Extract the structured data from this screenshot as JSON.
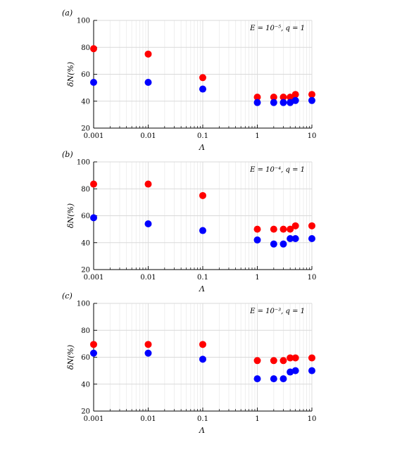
{
  "chart_data": [
    {
      "type": "scatter",
      "panel_label": "(a)",
      "annotation": "E = 10⁻⁵, q = 1",
      "xlabel": "Λ",
      "ylabel": "δN(%)",
      "x_scale": "log",
      "xlim": [
        0.001,
        10
      ],
      "ylim": [
        20,
        100
      ],
      "x_ticks": [
        0.001,
        0.01,
        0.1,
        1,
        10
      ],
      "x_tick_labels": [
        "0.001",
        "0.01",
        "0.1",
        "1",
        "10"
      ],
      "y_ticks": [
        20,
        40,
        60,
        80,
        100
      ],
      "y_tick_labels": [
        "20",
        "40",
        "60",
        "80",
        "100"
      ],
      "grid": true,
      "series": [
        {
          "color": "#ff0000",
          "x": [
            0.001,
            0.01,
            0.1,
            1,
            2,
            3,
            4,
            5,
            10
          ],
          "y": [
            79,
            75,
            57.5,
            43,
            43,
            43,
            43,
            45,
            45
          ]
        },
        {
          "color": "#0000ff",
          "x": [
            0.001,
            0.01,
            0.1,
            1,
            2,
            3,
            4,
            5,
            10
          ],
          "y": [
            54,
            54,
            49,
            39,
            39,
            39,
            39,
            40.5,
            40.5
          ]
        }
      ]
    },
    {
      "type": "scatter",
      "panel_label": "(b)",
      "annotation": "E = 10⁻⁴, q = 1",
      "xlabel": "Λ",
      "ylabel": "δN(%)",
      "x_scale": "log",
      "xlim": [
        0.001,
        10
      ],
      "ylim": [
        20,
        100
      ],
      "x_ticks": [
        0.001,
        0.01,
        0.1,
        1,
        10
      ],
      "x_tick_labels": [
        "0.001",
        "0.01",
        "0.1",
        "1",
        "10"
      ],
      "y_ticks": [
        20,
        40,
        60,
        80,
        100
      ],
      "y_tick_labels": [
        "20",
        "40",
        "60",
        "80",
        "100"
      ],
      "grid": true,
      "series": [
        {
          "color": "#ff0000",
          "x": [
            0.001,
            0.01,
            0.1,
            1,
            2,
            3,
            4,
            5,
            10
          ],
          "y": [
            83.5,
            83.5,
            75,
            50,
            50,
            50,
            50,
            52.5,
            52.5
          ]
        },
        {
          "color": "#0000ff",
          "x": [
            0.001,
            0.01,
            0.1,
            1,
            2,
            3,
            4,
            5,
            10
          ],
          "y": [
            58.5,
            54,
            49,
            42,
            39,
            39,
            43,
            43,
            43
          ]
        }
      ]
    },
    {
      "type": "scatter",
      "panel_label": "(c)",
      "annotation": "E = 10⁻³, q = 1",
      "xlabel": "Λ",
      "ylabel": "δN(%)",
      "x_scale": "log",
      "xlim": [
        0.001,
        10
      ],
      "ylim": [
        20,
        100
      ],
      "x_ticks": [
        0.001,
        0.01,
        0.1,
        1,
        10
      ],
      "x_tick_labels": [
        "0.001",
        "0.01",
        "0.1",
        "1",
        "10"
      ],
      "y_ticks": [
        20,
        40,
        60,
        80,
        100
      ],
      "y_tick_labels": [
        "20",
        "40",
        "60",
        "80",
        "100"
      ],
      "grid": true,
      "series": [
        {
          "color": "#ff0000",
          "x": [
            0.001,
            0.01,
            0.1,
            1,
            2,
            3,
            4,
            5,
            10
          ],
          "y": [
            69.5,
            69.5,
            69.5,
            57.5,
            57.5,
            57.5,
            59.5,
            59.5,
            59.5
          ]
        },
        {
          "color": "#0000ff",
          "x": [
            0.001,
            0.01,
            0.1,
            1,
            2,
            3,
            4,
            5,
            10
          ],
          "y": [
            63,
            63,
            58.5,
            44,
            44,
            44,
            49,
            50,
            50
          ]
        }
      ]
    }
  ]
}
